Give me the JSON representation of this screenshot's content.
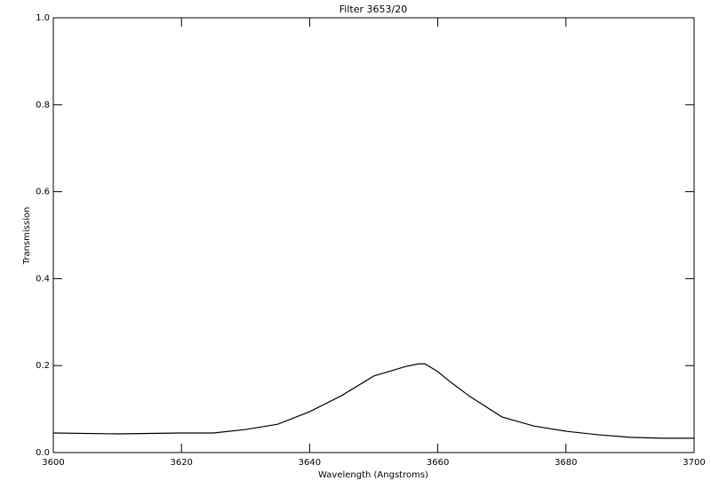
{
  "chart_data": {
    "type": "line",
    "title": "Filter 3653/20",
    "x_label": "Wavelength (Angstroms)",
    "y_label": "Transmission",
    "x": [
      3600,
      3610,
      3620,
      3625,
      3630,
      3635,
      3640,
      3645,
      3650,
      3655,
      3657,
      3658,
      3660,
      3662,
      3665,
      3670,
      3675,
      3680,
      3685,
      3690,
      3695,
      3700
    ],
    "series": [
      {
        "color": "#000000",
        "values": [
          0.045,
          0.043,
          0.045,
          0.045,
          0.053,
          0.065,
          0.094,
          0.131,
          0.176,
          0.198,
          0.204,
          0.204,
          0.186,
          0.162,
          0.129,
          0.082,
          0.061,
          0.049,
          0.041,
          0.035,
          0.033,
          0.033
        ]
      }
    ],
    "xlim": [
      3600,
      3700
    ],
    "xticks": [
      3600,
      3620,
      3640,
      3660,
      3680,
      3700
    ],
    "ylim": [
      0,
      1
    ],
    "yticks": [
      {
        "value": 0,
        "label": "0.0"
      },
      0.2,
      0.4,
      0.6,
      0.8,
      {
        "value": 1,
        "label": "1.0"
      }
    ]
  }
}
